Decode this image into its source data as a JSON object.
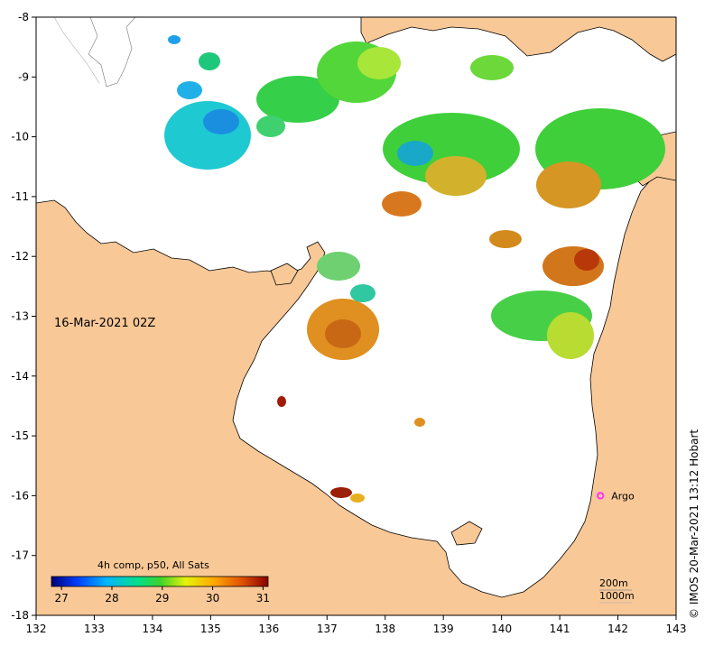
{
  "map": {
    "timestamp": "16-Mar-2021 02Z",
    "credit": "©  IMOS 20-Mar-2021 13:12 Hobart",
    "x_ticks": [
      "132",
      "133",
      "134",
      "135",
      "136",
      "137",
      "138",
      "139",
      "140",
      "141",
      "142",
      "143"
    ],
    "y_ticks": [
      "-8",
      "-9",
      "-10",
      "-11",
      "-12",
      "-13",
      "-14",
      "-15",
      "-16",
      "-17",
      "-18"
    ],
    "colorbar": {
      "title": "4h comp, p50, All Sats",
      "ticks": [
        "27",
        "28",
        "29",
        "30",
        "31"
      ],
      "range": [
        26.8,
        31.1
      ]
    },
    "argo": {
      "label": "Argo",
      "lon": 141.7,
      "lat": -16.0,
      "color": "#ff33ff"
    },
    "depth_legend": {
      "line1": "200m",
      "line2": "1000m"
    },
    "colors": {
      "land": "#f9c897",
      "sea": "#ffffff"
    }
  }
}
